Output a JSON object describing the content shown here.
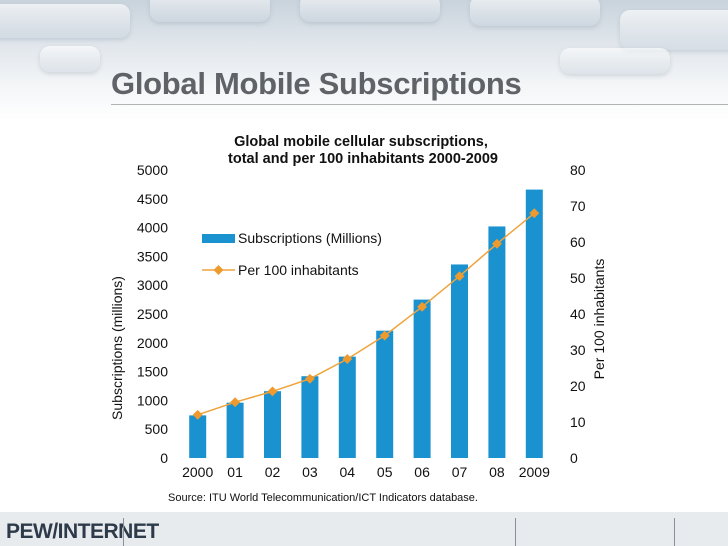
{
  "slide": {
    "title": "Global Mobile Subscriptions",
    "logo": "PEW/INTERNET"
  },
  "colors": {
    "bar": "#1a92d0",
    "line": "#f0a33a",
    "marker": "#ee9a2e",
    "text": "#111111",
    "title": "#5f6368"
  },
  "chart_data": {
    "type": "bar",
    "title_line1": "Global mobile cellular subscriptions,",
    "title_line2": "total and per 100 inhabitants 2000-2009",
    "categories": [
      "2000",
      "01",
      "02",
      "03",
      "04",
      "05",
      "06",
      "07",
      "08",
      "2009"
    ],
    "series": [
      {
        "name": "Subscriptions (Millions)",
        "type": "bar",
        "axis": "left",
        "values": [
          740,
          960,
          1160,
          1420,
          1760,
          2210,
          2750,
          3360,
          4020,
          4660
        ]
      },
      {
        "name": "Per 100 inhabitants",
        "type": "line",
        "axis": "right",
        "values": [
          12,
          15.5,
          18.5,
          22,
          27.5,
          34,
          42,
          50.5,
          59.5,
          68
        ]
      }
    ],
    "ylabel_left": "Subscriptions (millions)",
    "ylabel_right": "Per 100 inhabitants",
    "ylim_left": [
      0,
      5000
    ],
    "ylim_right": [
      0,
      80
    ],
    "yticks_left": [
      0,
      500,
      1000,
      1500,
      2000,
      2500,
      3000,
      3500,
      4000,
      4500,
      5000
    ],
    "yticks_right": [
      0,
      10,
      20,
      30,
      40,
      50,
      60,
      70,
      80
    ],
    "legend_position": "upper-left",
    "grid": false,
    "source": "Source: ITU World Telecommunication/ICT Indicators database."
  }
}
